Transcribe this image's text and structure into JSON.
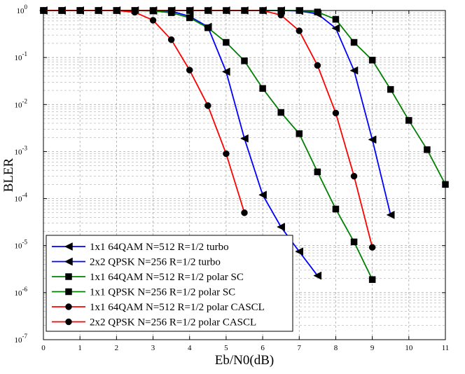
{
  "chart_data": {
    "type": "line",
    "title": "",
    "xlabel": "Eb/N0(dB)",
    "ylabel": "BLER",
    "xlim": [
      0,
      11
    ],
    "ylim": [
      1e-07,
      1
    ],
    "yscale": "log",
    "grid": true,
    "legend_placement": "bottom-left",
    "x_ticks": [
      "0",
      "1",
      "2",
      "3",
      "4",
      "5",
      "6",
      "7",
      "8",
      "9",
      "10",
      "11"
    ],
    "y_ticks": [
      {
        "base": "10",
        "exp": "0"
      },
      {
        "base": "10",
        "exp": "-1"
      },
      {
        "base": "10",
        "exp": "-2"
      },
      {
        "base": "10",
        "exp": "-3"
      },
      {
        "base": "10",
        "exp": "-4"
      },
      {
        "base": "10",
        "exp": "-5"
      },
      {
        "base": "10",
        "exp": "-6"
      },
      {
        "base": "10",
        "exp": "-7"
      }
    ],
    "series": [
      {
        "name": "1x1 64QAM N=512 R=1/2 turbo",
        "color": "#0000ff",
        "marker": "triangle-left",
        "x": [
          0,
          0.5,
          1,
          1.5,
          2,
          2.5,
          3,
          3.5,
          4,
          4.5,
          5,
          5.5,
          6,
          6.5,
          7,
          7.5,
          8,
          8.5,
          9,
          9.5
        ],
        "y": [
          1,
          1,
          1,
          1,
          1,
          1,
          1,
          1,
          1,
          1,
          1,
          1,
          1,
          1,
          0.98,
          0.85,
          0.42,
          0.053,
          0.0018,
          4.5e-05
        ]
      },
      {
        "name": "2x2 QPSK N=256 R=1/2 turbo",
        "color": "#0000ff",
        "marker": "triangle-left",
        "x": [
          0,
          0.5,
          1,
          1.5,
          2,
          2.5,
          3,
          3.5,
          4,
          4.5,
          5,
          5.5,
          6,
          6.5,
          7,
          7.5
        ],
        "y": [
          1,
          1,
          1,
          1,
          1,
          1,
          1,
          0.97,
          0.75,
          0.45,
          0.05,
          0.0019,
          0.00012,
          2.5e-05,
          7.5e-06,
          2.3e-06
        ]
      },
      {
        "name": "1x1 64QAM N=512 R=1/2 polar SC",
        "color": "#008000",
        "marker": "square",
        "x": [
          0,
          0.5,
          1,
          1.5,
          2,
          2.5,
          3,
          3.5,
          4,
          4.5,
          5,
          5.5,
          6,
          6.5,
          7,
          7.5,
          8,
          8.5,
          9,
          9.5,
          10,
          10.5,
          11
        ],
        "y": [
          1,
          1,
          1,
          1,
          1,
          1,
          1,
          1,
          1,
          1,
          1,
          1,
          1,
          1,
          1,
          0.93,
          0.65,
          0.21,
          0.088,
          0.021,
          0.0046,
          0.0011,
          0.0002
        ]
      },
      {
        "name": "1x1 QPSK N=256 R=1/2 polar SC",
        "color": "#008000",
        "marker": "square",
        "x": [
          0,
          0.5,
          1,
          1.5,
          2,
          2.5,
          3,
          3.5,
          4,
          4.5,
          5,
          5.5,
          6,
          6.5,
          7,
          7.5,
          8,
          8.5,
          9
        ],
        "y": [
          1,
          1,
          1,
          1,
          1,
          1,
          0.98,
          0.9,
          0.7,
          0.43,
          0.21,
          0.085,
          0.022,
          0.0068,
          0.0024,
          0.00037,
          6e-05,
          1.2e-05,
          1.9e-06
        ]
      },
      {
        "name": "1x1 64QAM N=512 R=1/2 polar CASCL",
        "color": "#ff0000",
        "marker": "circle",
        "x": [
          0,
          0.5,
          1,
          1.5,
          2,
          2.5,
          3,
          3.5,
          4,
          4.5,
          5,
          5.5,
          6,
          6.5,
          7,
          7.5,
          8,
          8.5,
          9
        ],
        "y": [
          1,
          1,
          1,
          1,
          1,
          1,
          1,
          1,
          1,
          1,
          1,
          1,
          1,
          0.8,
          0.37,
          0.068,
          0.0066,
          0.0003,
          9.2e-06
        ]
      },
      {
        "name": "2x2 QPSK N=256 R=1/2 polar CASCL",
        "color": "#ff0000",
        "marker": "circle",
        "x": [
          0,
          0.5,
          1,
          1.5,
          2,
          2.5,
          3,
          3.5,
          4,
          4.5,
          5,
          5.5
        ],
        "y": [
          1,
          1,
          1,
          1,
          1,
          0.92,
          0.62,
          0.24,
          0.054,
          0.0095,
          0.0009,
          5e-05
        ]
      }
    ]
  }
}
